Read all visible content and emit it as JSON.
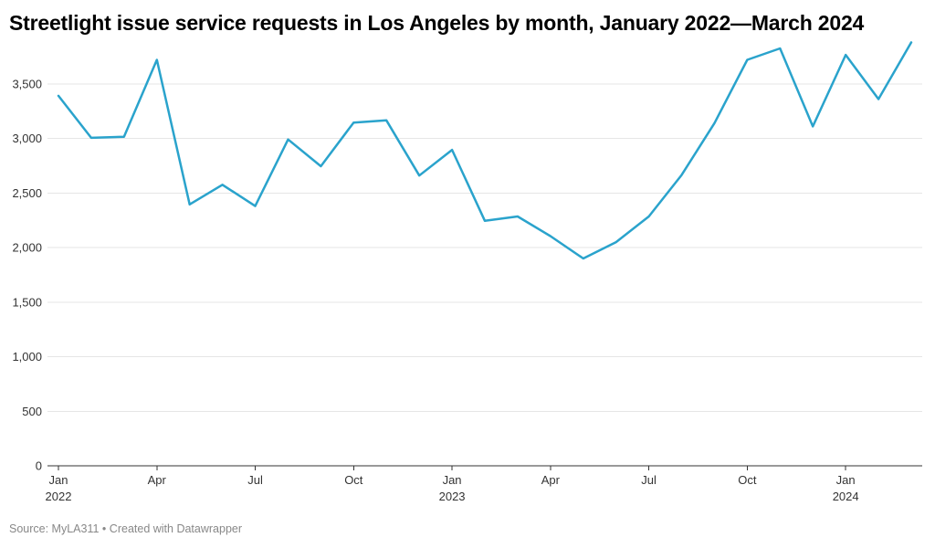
{
  "chart_title": "Streetlight issue service requests in Los Angeles by month, January 2022—March 2024",
  "footer": {
    "source": "Source: MyLA311",
    "separator": "•",
    "credit": "Created with Datawrapper"
  },
  "colors": {
    "line": "#2aa3cc",
    "grid": "#e6e6e6",
    "axis": "#333333"
  },
  "chart_data": {
    "type": "line",
    "title": "Streetlight issue service requests in Los Angeles by month, January 2022—March 2024",
    "xlabel": "",
    "ylabel": "",
    "ylim": [
      0,
      3900
    ],
    "grid": true,
    "y_ticks": [
      0,
      500,
      1000,
      1500,
      2000,
      2500,
      3000,
      3500
    ],
    "y_tick_labels": [
      "0",
      "500",
      "1,000",
      "1,500",
      "2,000",
      "2,500",
      "3,000",
      "3,500"
    ],
    "x_ticks": [
      {
        "month": "2022-01",
        "label": "Jan",
        "sublabel": "2022"
      },
      {
        "month": "2022-04",
        "label": "Apr",
        "sublabel": ""
      },
      {
        "month": "2022-07",
        "label": "Jul",
        "sublabel": ""
      },
      {
        "month": "2022-10",
        "label": "Oct",
        "sublabel": ""
      },
      {
        "month": "2023-01",
        "label": "Jan",
        "sublabel": "2023"
      },
      {
        "month": "2023-04",
        "label": "Apr",
        "sublabel": ""
      },
      {
        "month": "2023-07",
        "label": "Jul",
        "sublabel": ""
      },
      {
        "month": "2023-10",
        "label": "Oct",
        "sublabel": ""
      },
      {
        "month": "2024-01",
        "label": "Jan",
        "sublabel": "2024"
      }
    ],
    "series": [
      {
        "x": [
          "2022-01",
          "2022-02",
          "2022-03",
          "2022-04",
          "2022-05",
          "2022-06",
          "2022-07",
          "2022-08",
          "2022-09",
          "2022-10",
          "2022-11",
          "2022-12",
          "2023-01",
          "2023-02",
          "2023-03",
          "2023-04",
          "2023-05",
          "2023-06",
          "2023-07",
          "2023-08",
          "2023-09",
          "2023-10",
          "2023-11",
          "2023-12",
          "2024-01",
          "2024-02",
          "2024-03"
        ],
        "values": [
          3390,
          3005,
          3015,
          3720,
          2395,
          2575,
          2380,
          2990,
          2745,
          3145,
          3165,
          2660,
          2895,
          2245,
          2285,
          2105,
          1900,
          2050,
          2285,
          2665,
          3140,
          3720,
          3825,
          3110,
          3765,
          3360,
          3880
        ]
      }
    ]
  }
}
